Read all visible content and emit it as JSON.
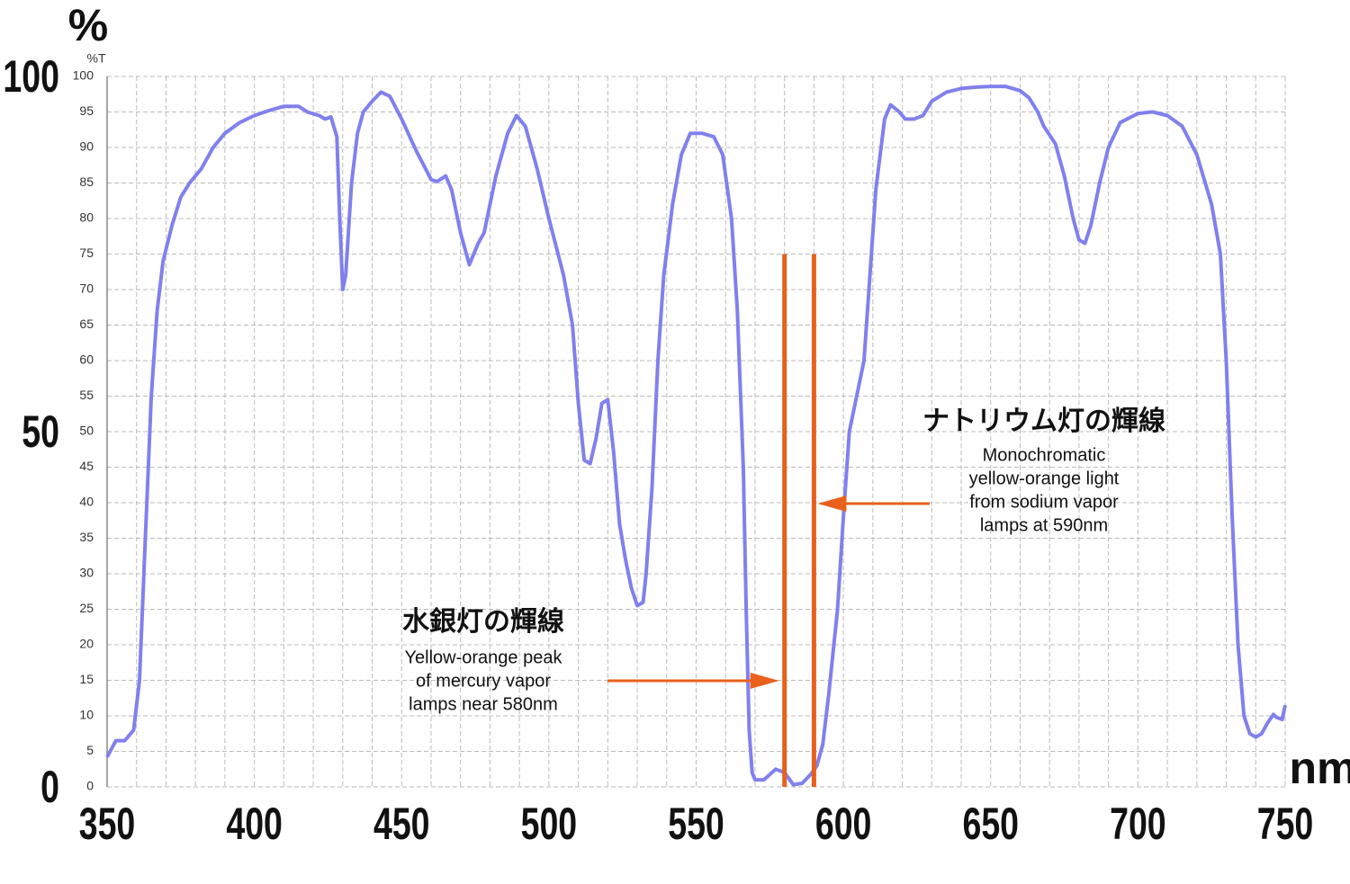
{
  "chart_data": {
    "type": "line",
    "y_title": "%",
    "y_unit": "%T",
    "x_title": "nm",
    "color": "#8080ee",
    "xlim": [
      350,
      750
    ],
    "ylim": [
      0,
      100
    ],
    "xticks": [
      350,
      400,
      450,
      500,
      550,
      600,
      650,
      700,
      750
    ],
    "xgrid": [
      350,
      360,
      370,
      380,
      390,
      400,
      410,
      420,
      430,
      440,
      450,
      460,
      470,
      480,
      490,
      500,
      510,
      520,
      530,
      540,
      550,
      560,
      570,
      580,
      590,
      600,
      610,
      620,
      630,
      640,
      650,
      660,
      670,
      680,
      690,
      700,
      710,
      720,
      730,
      740,
      750
    ],
    "yticks": [
      0,
      5,
      10,
      15,
      20,
      25,
      30,
      35,
      40,
      45,
      50,
      55,
      60,
      65,
      70,
      75,
      80,
      85,
      90,
      95,
      100
    ],
    "yticks_major": [
      0,
      50,
      100
    ],
    "x": [
      350,
      353,
      356,
      359,
      361,
      363,
      365,
      367,
      369,
      372,
      375,
      378,
      382,
      386,
      390,
      395,
      400,
      405,
      410,
      415,
      418,
      422,
      424,
      426,
      428,
      429,
      430,
      431,
      433,
      435,
      437,
      440,
      443,
      446,
      450,
      455,
      460,
      462,
      465,
      467,
      470,
      473,
      476,
      478,
      482,
      486,
      489,
      492,
      496,
      500,
      505,
      508,
      510,
      512,
      514,
      516,
      518,
      520,
      522,
      524,
      526,
      528,
      530,
      532,
      533,
      535,
      537,
      539,
      542,
      545,
      548,
      552,
      556,
      559,
      562,
      564,
      566,
      567,
      568,
      569,
      570,
      573,
      577,
      580,
      583,
      586,
      589,
      591,
      593,
      595,
      598,
      600,
      602,
      605,
      607,
      609,
      611,
      614,
      616,
      619,
      621,
      624,
      627,
      630,
      635,
      640,
      645,
      650,
      655,
      660,
      663,
      666,
      668,
      672,
      675,
      678,
      680,
      682,
      684,
      687,
      690,
      694,
      700,
      705,
      710,
      715,
      720,
      725,
      728,
      730,
      732,
      734,
      736,
      738,
      740,
      742,
      744,
      746,
      747,
      749,
      750
    ],
    "values": [
      4.2,
      6.5,
      6.5,
      8,
      15,
      35,
      55,
      67,
      74,
      79,
      83,
      85,
      87,
      90,
      92,
      93.5,
      94.5,
      95.2,
      95.8,
      95.8,
      95,
      94.5,
      94,
      94.3,
      91.5,
      80,
      70,
      72,
      85,
      92,
      95,
      96.5,
      97.8,
      97.2,
      94,
      89.5,
      85.5,
      85.2,
      86,
      84,
      78,
      73.5,
      76.5,
      78,
      86,
      92,
      94.5,
      93,
      87,
      80,
      72,
      65,
      54,
      46,
      45.5,
      49,
      54,
      54.5,
      47,
      37,
      32,
      28,
      25.5,
      26,
      30,
      42,
      60,
      72,
      82,
      89,
      92,
      92,
      91.5,
      89,
      80,
      67,
      45,
      25,
      8,
      2,
      1,
      1,
      2.5,
      2,
      0.3,
      0.5,
      1.8,
      3,
      6,
      13,
      25,
      38,
      50,
      56,
      60,
      72,
      84,
      94,
      96,
      95,
      94,
      94,
      94.5,
      96.5,
      97.8,
      98.3,
      98.5,
      98.6,
      98.6,
      98,
      97,
      95,
      93,
      90.5,
      86,
      80,
      77,
      76.5,
      79,
      85,
      90,
      93.5,
      94.8,
      95,
      94.5,
      93,
      89,
      82,
      75,
      60,
      38,
      20,
      10,
      7.5,
      7,
      7.5,
      9,
      10.2,
      9.8,
      9.5,
      11.5
    ],
    "vlines": [
      580,
      590
    ],
    "vline_top": 75,
    "vline_color": "#e8601c",
    "annotations": [
      {
        "title": "水銀灯の輝線",
        "lines": [
          "Yellow-orange peak",
          "of mercury vapor",
          "lamps near 580nm"
        ]
      },
      {
        "title": "ナトリウム灯の輝線",
        "lines": [
          "Monochromatic",
          "yellow-orange light",
          "from sodium vapor",
          "lamps at 590nm"
        ]
      }
    ]
  }
}
